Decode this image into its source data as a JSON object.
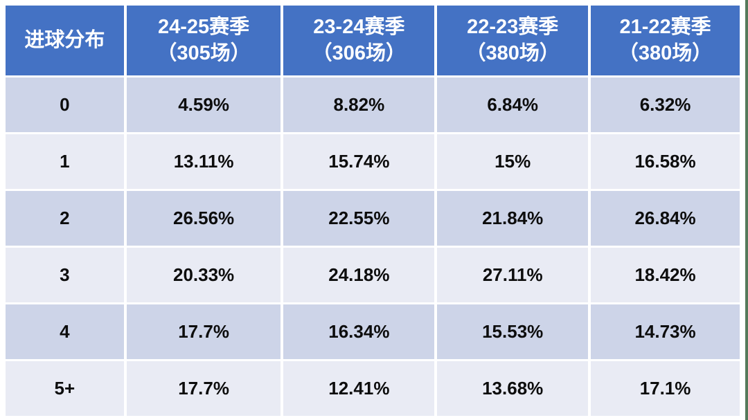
{
  "table": {
    "header": {
      "label": "进球分布",
      "columns": [
        {
          "season": "24-25赛季",
          "matches": "（305场）"
        },
        {
          "season": "23-24赛季",
          "matches": "（306场）"
        },
        {
          "season": "22-23赛季",
          "matches": "（380场）"
        },
        {
          "season": "21-22赛季",
          "matches": "（380场）"
        }
      ]
    },
    "rows": [
      {
        "label": "0",
        "values": [
          "4.59%",
          "8.82%",
          "6.84%",
          "6.32%"
        ]
      },
      {
        "label": "1",
        "values": [
          "13.11%",
          "15.74%",
          "15%",
          "16.58%"
        ]
      },
      {
        "label": "2",
        "values": [
          "26.56%",
          "22.55%",
          "21.84%",
          "26.84%"
        ]
      },
      {
        "label": "3",
        "values": [
          "20.33%",
          "24.18%",
          "27.11%",
          "18.42%"
        ]
      },
      {
        "label": "4",
        "values": [
          "17.7%",
          "16.34%",
          "15.53%",
          "14.73%"
        ]
      },
      {
        "label": "5+",
        "values": [
          "17.7%",
          "12.41%",
          "13.68%",
          "17.1%"
        ]
      }
    ]
  },
  "colors": {
    "header_bg": "#4472C4",
    "header_text": "#FFFFFF",
    "row_band": "#CDD4E8",
    "row_light": "#E9EBF4",
    "cell_gap": "#FFFFFF",
    "value_text": "#0D0D0D",
    "edge_stripe": "#55795A"
  },
  "chart_data": {
    "type": "table",
    "title": "进球分布",
    "unit": "%",
    "categories": [
      "0",
      "1",
      "2",
      "3",
      "4",
      "5+"
    ],
    "series": [
      {
        "name": "24-25赛季（305场）",
        "values": [
          4.59,
          13.11,
          26.56,
          20.33,
          17.7,
          17.7
        ]
      },
      {
        "name": "23-24赛季（306场）",
        "values": [
          8.82,
          15.74,
          22.55,
          24.18,
          16.34,
          12.41
        ]
      },
      {
        "name": "22-23赛季（380场）",
        "values": [
          6.84,
          15.0,
          21.84,
          27.11,
          15.53,
          13.68
        ]
      },
      {
        "name": "21-22赛季（380场）",
        "values": [
          6.32,
          16.58,
          26.84,
          18.42,
          14.73,
          17.1
        ]
      }
    ]
  }
}
